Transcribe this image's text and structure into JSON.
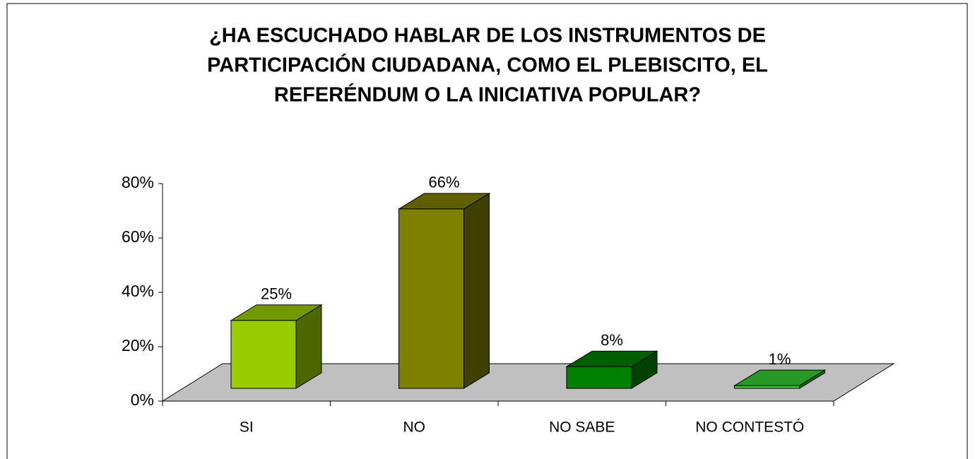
{
  "chart_data": {
    "type": "bar3d",
    "title": [
      "¿HA ESCUCHADO HABLAR DE LOS INSTRUMENTOS DE",
      "PARTICIPACIÓN CIUDADANA, COMO EL PLEBISCITO, EL",
      "REFERÉNDUM O LA INICIATIVA POPULAR?"
    ],
    "categories": [
      "SI",
      "NO",
      "NO SABE",
      "NO CONTESTÓ"
    ],
    "values": [
      25,
      66,
      8,
      1
    ],
    "value_labels": [
      "25%",
      "66%",
      "8%",
      "1%"
    ],
    "colors": [
      "#99cc00",
      "#808000",
      "#008000",
      "#33cc33"
    ],
    "ylim": [
      0,
      80
    ],
    "yticks": [
      {
        "value": 0,
        "label": "0%"
      },
      {
        "value": 20,
        "label": "20%"
      },
      {
        "value": 40,
        "label": "40%"
      },
      {
        "value": 60,
        "label": "60%"
      },
      {
        "value": 80,
        "label": "80%"
      }
    ],
    "floor_color": "#c0c0c0"
  }
}
